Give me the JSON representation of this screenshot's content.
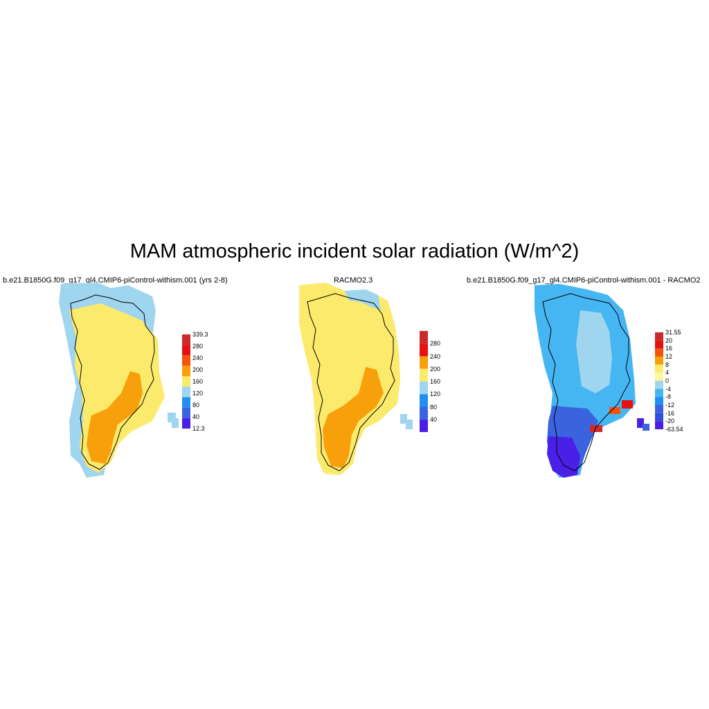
{
  "title": "MAM atmospheric incident solar radiation (W/m^2)",
  "colors": {
    "deep_blue": "#4a1fe6",
    "blue": "#3b63e0",
    "mid_blue": "#1f8ff0",
    "sky_blue": "#46b6f2",
    "light_blue": "#9fd5ee",
    "pale_yellow": "#fdf7a0",
    "yellow": "#fcea6c",
    "orange": "#f8a00c",
    "red_orange": "#f5520a",
    "red": "#e61010",
    "dark_red": "#cc2a2a"
  },
  "panels": [
    {
      "title": "b.e21.B1850G.f09_g17_gl4.CMIP6-piControl-withism.001 (yrs 2-8)",
      "colorbar": {
        "labels": [
          "339.3",
          "280",
          "240",
          "200",
          "160",
          "120",
          "80",
          "40",
          "12.3"
        ],
        "colors": [
          "#cc2a2a",
          "#e61010",
          "#f5520a",
          "#f8a00c",
          "#fcea6c",
          "#9fd5ee",
          "#1f8ff0",
          "#3b63e0",
          "#4a1fe6"
        ]
      }
    },
    {
      "title": "RACMO2.3",
      "colorbar": {
        "labels": [
          "280",
          "240",
          "200",
          "160",
          "120",
          "80",
          "40"
        ],
        "colors": [
          "#cc2a2a",
          "#e61010",
          "#f8a00c",
          "#fcea6c",
          "#9fd5ee",
          "#1f8ff0",
          "#3b63e0",
          "#4a1fe6"
        ]
      }
    },
    {
      "title": "b.e21.B1850G.f09_g17_gl4.CMIP6-piControl-withism.001 - RACMO2",
      "colorbar": {
        "labels": [
          "31.55",
          "20",
          "16",
          "12",
          "8",
          "4",
          "0",
          "-4",
          "-8",
          "-12",
          "-16",
          "-20",
          "-63.54"
        ],
        "colors": [
          "#cc2a2a",
          "#e61010",
          "#f5520a",
          "#f8a00c",
          "#fcea6c",
          "#fdf7a0",
          "#9fd5ee",
          "#46b6f2",
          "#1f8ff0",
          "#3b63e0",
          "#3050d8",
          "#4a1fe6"
        ]
      }
    }
  ]
}
